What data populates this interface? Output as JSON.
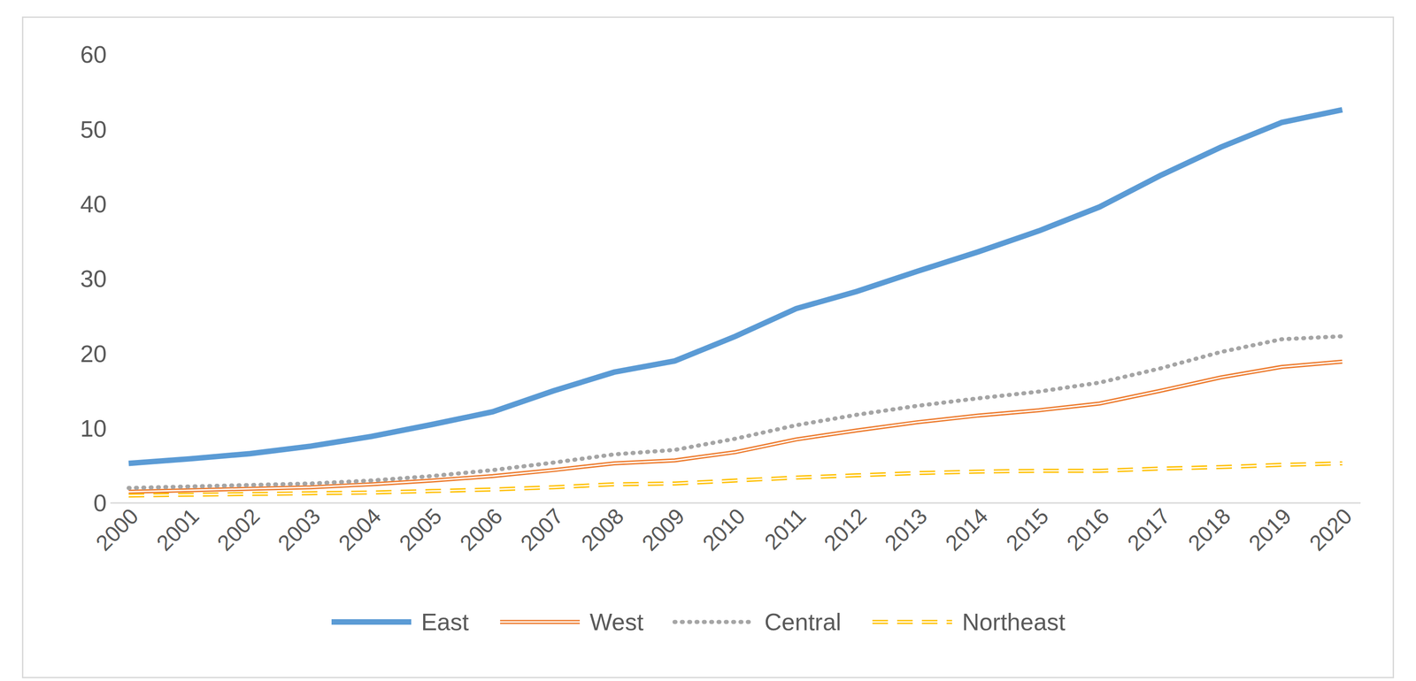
{
  "chart_data": {
    "type": "line",
    "categories": [
      "2000",
      "2001",
      "2002",
      "2003",
      "2004",
      "2005",
      "2006",
      "2007",
      "2008",
      "2009",
      "2010",
      "2011",
      "2012",
      "2013",
      "2014",
      "2015",
      "2016",
      "2017",
      "2018",
      "2019",
      "2020"
    ],
    "series": [
      {
        "name": "East",
        "color": "#5b9bd5",
        "line_style": "solid",
        "values": [
          5.3,
          5.9,
          6.6,
          7.6,
          8.9,
          10.5,
          12.2,
          15.0,
          17.5,
          19.0,
          22.3,
          26.0,
          28.3,
          31.0,
          33.6,
          36.4,
          39.6,
          43.8,
          47.6,
          50.9,
          52.6
        ]
      },
      {
        "name": "West",
        "color": "#ed7d31",
        "line_style": "double",
        "values": [
          1.5,
          1.7,
          1.9,
          2.1,
          2.5,
          3.0,
          3.6,
          4.4,
          5.3,
          5.7,
          6.8,
          8.5,
          9.7,
          10.8,
          11.7,
          12.4,
          13.3,
          15.0,
          16.8,
          18.2,
          18.9
        ]
      },
      {
        "name": "Central",
        "color": "#a5a5a5",
        "line_style": "dotted",
        "values": [
          2.0,
          2.2,
          2.4,
          2.6,
          3.0,
          3.6,
          4.4,
          5.4,
          6.5,
          7.1,
          8.6,
          10.4,
          11.8,
          13.0,
          14.0,
          14.9,
          16.1,
          18.0,
          20.2,
          21.9,
          22.3
        ]
      },
      {
        "name": "Northeast",
        "color": "#ffc000",
        "line_style": "dashed_double",
        "values": [
          1.0,
          1.1,
          1.2,
          1.3,
          1.4,
          1.6,
          1.8,
          2.1,
          2.5,
          2.6,
          3.0,
          3.4,
          3.7,
          4.0,
          4.2,
          4.3,
          4.3,
          4.6,
          4.8,
          5.1,
          5.3
        ]
      }
    ],
    "ylim": [
      0,
      60
    ],
    "yticks": [
      0,
      10,
      20,
      30,
      40,
      50,
      60
    ],
    "grid": false,
    "legend": "bottom"
  }
}
